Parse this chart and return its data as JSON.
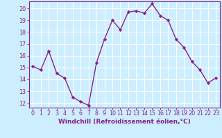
{
  "x": [
    0,
    1,
    2,
    3,
    4,
    5,
    6,
    7,
    8,
    9,
    10,
    11,
    12,
    13,
    14,
    15,
    16,
    17,
    18,
    19,
    20,
    21,
    22,
    23
  ],
  "y": [
    15.1,
    14.8,
    16.4,
    14.5,
    14.1,
    12.5,
    12.1,
    11.8,
    15.4,
    17.4,
    19.0,
    18.2,
    19.7,
    19.8,
    19.6,
    20.4,
    19.4,
    19.0,
    17.4,
    16.7,
    15.5,
    14.8,
    13.7,
    14.1
  ],
  "line_color": "#882288",
  "marker": "D",
  "marker_size": 2.2,
  "linewidth": 1.0,
  "xlabel": "Windchill (Refroidissement éolien,°C)",
  "xlabel_fontsize": 6.5,
  "ylim": [
    11.6,
    20.6
  ],
  "xlim": [
    -0.5,
    23.5
  ],
  "yticks": [
    12,
    13,
    14,
    15,
    16,
    17,
    18,
    19,
    20
  ],
  "xticks": [
    0,
    1,
    2,
    3,
    4,
    5,
    6,
    7,
    8,
    9,
    10,
    11,
    12,
    13,
    14,
    15,
    16,
    17,
    18,
    19,
    20,
    21,
    22,
    23
  ],
  "background_color": "#cceeff",
  "grid_color": "#ffffff",
  "tick_fontsize": 5.8,
  "spine_color": "#882288"
}
